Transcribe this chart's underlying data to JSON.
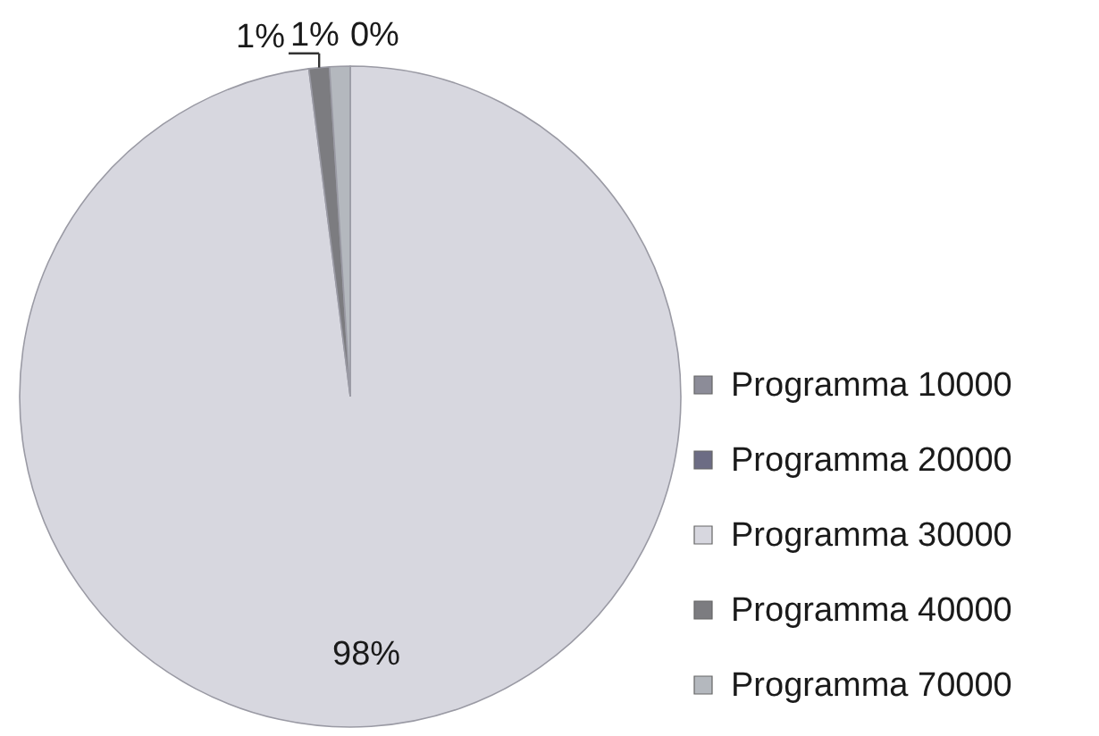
{
  "chart_data": {
    "type": "pie",
    "categories": [
      "Programma 10000",
      "Programma 20000",
      "Programma 30000",
      "Programma 40000",
      "Programma 70000"
    ],
    "values": [
      0,
      0,
      98,
      1,
      1
    ],
    "colors": [
      "#8c8c98",
      "#6c6c84",
      "#d7d7df",
      "#7c7c80",
      "#b4b8be"
    ],
    "value_labels": [
      "0%",
      null,
      "98%",
      "1%",
      "1%"
    ],
    "legend": "right"
  }
}
